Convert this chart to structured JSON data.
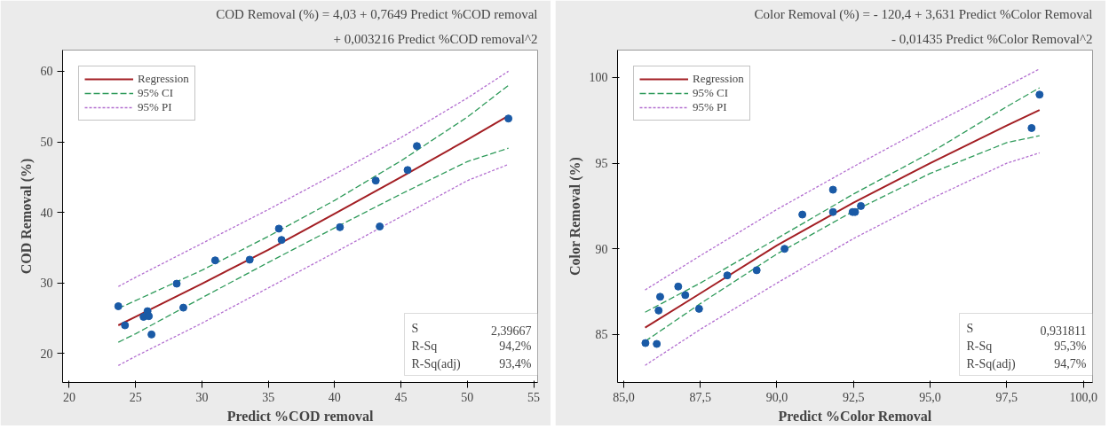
{
  "chart_data": [
    {
      "type": "scatter",
      "title": "COD Removal (%) = 4,03 + 0,7649 Predict %COD removal",
      "subtitle": "+ 0,003216 Predict %COD removal^2",
      "xlabel": "Predict %COD removal",
      "ylabel": "COD Removal (%)",
      "xlim": [
        19.5,
        55.3
      ],
      "ylim": [
        15.9,
        63
      ],
      "xticks": [
        20,
        25,
        30,
        35,
        40,
        45,
        50,
        55
      ],
      "yticks": [
        20,
        30,
        40,
        50,
        60
      ],
      "grid": false,
      "legend": "top left",
      "annotations": [
        "S",
        "2,39667",
        "R-Sq",
        "94,2%",
        "R-Sq(adj)",
        "93,4%"
      ],
      "series": [
        {
          "type": "line",
          "name": "Regression",
          "color": "#a31f24",
          "line_style": "solid",
          "x": [
            23.7,
            25,
            30,
            35,
            40,
            45,
            50,
            53.1
          ],
          "values": [
            24.0,
            25.2,
            29.9,
            34.7,
            39.8,
            45.0,
            50.3,
            53.7
          ]
        },
        {
          "type": "line",
          "name": "95% CI",
          "color": "#2e9a5a",
          "line_style": "dashed",
          "x": [
            23.7,
            25,
            30,
            35,
            40,
            45,
            50,
            53.1
          ],
          "values": [
            26.4,
            27.5,
            31.8,
            36.6,
            41.7,
            47.3,
            53.5,
            58.0
          ]
        },
        {
          "type": "line",
          "color": "#2e9a5a",
          "line_style": "dashed",
          "x": [
            23.7,
            25,
            30,
            35,
            40,
            45,
            50,
            53.1
          ],
          "values": [
            21.6,
            22.8,
            27.9,
            32.9,
            37.8,
            42.6,
            47.2,
            49.1
          ]
        },
        {
          "type": "line",
          "name": "95% PI",
          "color": "#b36fd0",
          "line_style": "dotted",
          "x": [
            23.7,
            25,
            30,
            35,
            40,
            45,
            50,
            53.1
          ],
          "values": [
            29.5,
            30.8,
            35.6,
            40.4,
            45.4,
            50.6,
            56.2,
            60.0
          ]
        },
        {
          "type": "line",
          "color": "#b36fd0",
          "line_style": "dotted",
          "x": [
            23.7,
            25,
            30,
            35,
            40,
            45,
            50,
            53.1
          ],
          "values": [
            18.3,
            19.6,
            24.3,
            29.3,
            34.3,
            39.4,
            44.5,
            46.8
          ]
        },
        {
          "color": "#1a5aa6",
          "marker": "circle",
          "x": [
            23.7,
            24.2,
            25.9,
            25.6,
            26.0,
            26.2,
            28.1,
            28.6,
            31.0,
            33.6,
            35.8,
            36.0,
            40.4,
            43.1,
            43.4,
            45.5,
            46.2,
            53.1
          ],
          "values": [
            26.7,
            24.0,
            26.0,
            25.2,
            25.3,
            22.7,
            29.9,
            26.5,
            33.2,
            33.3,
            37.7,
            36.1,
            37.9,
            44.5,
            38.0,
            46.0,
            49.4,
            53.3
          ]
        }
      ]
    },
    {
      "type": "scatter",
      "title": "Color Removal (%) = - 120,4 + 3,631 Predict %Color Removal",
      "subtitle": "- 0,01435 Predict %Color Removal^2",
      "xlabel": "Predict %Color Removal",
      "ylabel": "Color Removal (%)",
      "xlim": [
        84.8,
        100.3
      ],
      "ylim": [
        82.2,
        101.6
      ],
      "xticks": [
        {
          "value": 85,
          "label": "85,0"
        },
        {
          "value": 87.5,
          "label": "87,5"
        },
        {
          "value": 90,
          "label": "90,0"
        },
        {
          "value": 92.5,
          "label": "92,5"
        },
        {
          "value": 95,
          "label": "95,0"
        },
        {
          "value": 97.5,
          "label": "97,5"
        },
        {
          "value": 100,
          "label": "100,0"
        }
      ],
      "yticks": [
        85,
        90,
        95,
        100
      ],
      "grid": false,
      "legend": "top left",
      "annotations": [
        "S",
        "0,931811",
        "R-Sq",
        "95,3%",
        "R-Sq(adj)",
        "94,7%"
      ],
      "series": [
        {
          "type": "line",
          "name": "Regression",
          "color": "#a31f24",
          "line_style": "solid",
          "x": [
            85.7,
            87.5,
            90,
            92.5,
            95,
            97.5,
            98.57
          ],
          "values": [
            85.4,
            87.4,
            90.2,
            92.7,
            95.0,
            97.2,
            98.1
          ]
        },
        {
          "type": "line",
          "name": "95% CI",
          "color": "#2e9a5a",
          "line_style": "dashed",
          "x": [
            85.7,
            87.5,
            90,
            92.5,
            95,
            97.5,
            98.57
          ],
          "values": [
            86.3,
            88.0,
            90.6,
            93.2,
            95.6,
            98.3,
            99.4
          ]
        },
        {
          "type": "line",
          "color": "#2e9a5a",
          "line_style": "dashed",
          "x": [
            85.7,
            87.5,
            90,
            92.5,
            95,
            97.5,
            98.57
          ],
          "values": [
            84.6,
            86.8,
            89.7,
            92.2,
            94.4,
            96.2,
            96.6
          ]
        },
        {
          "type": "line",
          "name": "95% PI",
          "color": "#b36fd0",
          "line_style": "dotted",
          "x": [
            85.7,
            87.5,
            90,
            92.5,
            95,
            97.5,
            98.57
          ],
          "values": [
            87.6,
            89.6,
            92.3,
            94.8,
            97.2,
            99.5,
            100.5
          ]
        },
        {
          "type": "line",
          "color": "#b36fd0",
          "line_style": "dotted",
          "x": [
            85.7,
            87.5,
            90,
            92.5,
            95,
            97.5,
            98.57
          ],
          "values": [
            83.2,
            85.3,
            88.0,
            90.6,
            92.9,
            95.0,
            95.6
          ]
        },
        {
          "color": "#1a5aa6",
          "marker": "circle",
          "x": [
            85.71,
            86.08,
            86.14,
            86.19,
            86.78,
            87.01,
            87.46,
            88.38,
            89.34,
            90.25,
            90.83,
            91.83,
            91.83,
            92.47,
            92.55,
            92.74,
            98.31,
            98.57
          ],
          "values": [
            84.5,
            84.45,
            86.4,
            87.2,
            87.8,
            87.3,
            86.5,
            88.45,
            88.75,
            90.0,
            92.0,
            93.45,
            92.15,
            92.15,
            92.15,
            92.5,
            97.05,
            99.0
          ]
        }
      ]
    }
  ]
}
